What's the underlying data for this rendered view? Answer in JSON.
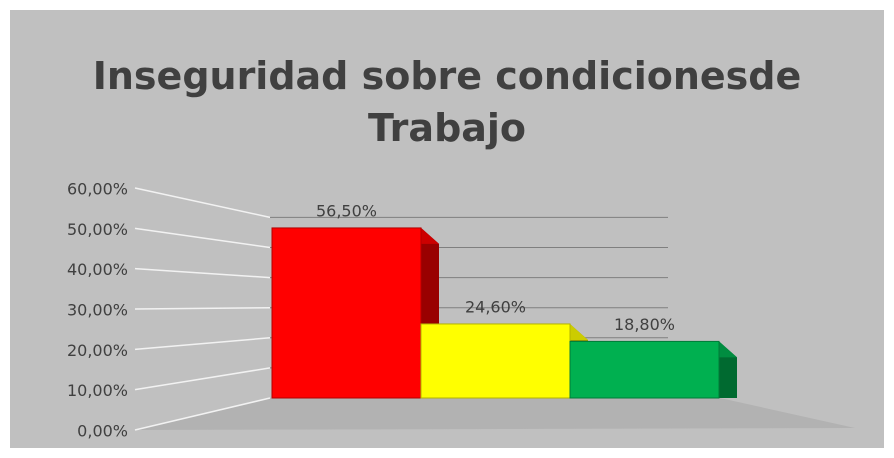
{
  "chart_data": {
    "type": "bar3d",
    "title": "Inseguridad sobre condicionesde Trabajo",
    "categories": [
      null,
      null,
      null
    ],
    "values": [
      56.5,
      24.6,
      18.8
    ],
    "value_labels": [
      "56,50%",
      "24,60%",
      "18,80%"
    ],
    "colors": [
      "#ff0000",
      "#ffff00",
      "#00b050"
    ],
    "ylim": [
      0,
      60
    ],
    "yticks": [
      {
        "value": 0,
        "label": "0,00%"
      },
      {
        "value": 10,
        "label": "10,00%"
      },
      {
        "value": 20,
        "label": "20,00%"
      },
      {
        "value": 30,
        "label": "30,00%"
      },
      {
        "value": 40,
        "label": "40,00%"
      },
      {
        "value": 50,
        "label": "50,00%"
      },
      {
        "value": 60,
        "label": "60,00%"
      }
    ],
    "grid": true
  }
}
